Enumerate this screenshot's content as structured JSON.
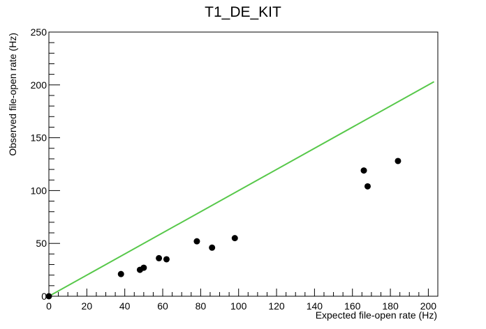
{
  "colors": {
    "background": "#ffffff",
    "axis": "#000000",
    "points": "#000000",
    "reference_line": "#57c84a"
  },
  "chart_data": {
    "type": "scatter",
    "title": "T1_DE_KIT",
    "xlabel": "Expected file-open rate (Hz)",
    "ylabel": "Observed file-open rate (Hz)",
    "xlim": [
      0,
      205
    ],
    "ylim": [
      0,
      250
    ],
    "x_ticks": [
      "0",
      "20",
      "40",
      "60",
      "80",
      "100",
      "120",
      "140",
      "160",
      "180",
      "200"
    ],
    "y_ticks": [
      "0",
      "50",
      "100",
      "150",
      "200",
      "250"
    ],
    "grid": false,
    "points": [
      {
        "x": 0,
        "y": 0
      },
      {
        "x": 38,
        "y": 21
      },
      {
        "x": 48,
        "y": 25
      },
      {
        "x": 50,
        "y": 27
      },
      {
        "x": 58,
        "y": 36
      },
      {
        "x": 62,
        "y": 35
      },
      {
        "x": 78,
        "y": 52
      },
      {
        "x": 86,
        "y": 46
      },
      {
        "x": 98,
        "y": 55
      },
      {
        "x": 166,
        "y": 119
      },
      {
        "x": 168,
        "y": 104
      },
      {
        "x": 184,
        "y": 128
      }
    ],
    "reference_line": {
      "x": [
        0,
        203
      ],
      "y": [
        0,
        203
      ]
    }
  }
}
